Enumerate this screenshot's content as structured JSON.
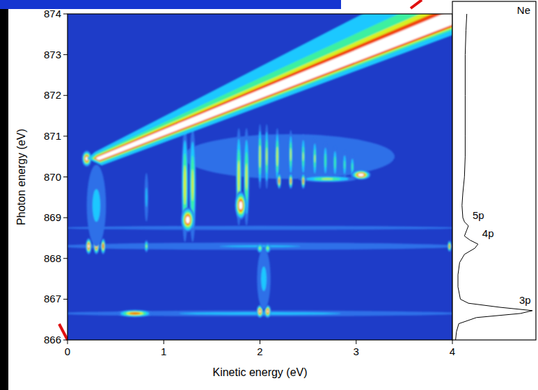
{
  "chart_data": {
    "type": "heatmap",
    "xlabel": "Kinetic energy (eV)",
    "ylabel": "Photon energy (eV)",
    "xlim": [
      0,
      4
    ],
    "ylim": [
      866,
      874
    ],
    "xticks": [
      0,
      1,
      2,
      3,
      4
    ],
    "yticks": [
      866,
      867,
      868,
      869,
      870,
      871,
      872,
      873,
      874
    ],
    "spots": [
      {
        "x": 2,
        "y": 866.65,
        "dx": 2.1,
        "dy": 0.07,
        "intensity": 0.35
      },
      {
        "x": 2,
        "y": 868.3,
        "dx": 2.1,
        "dy": 0.09,
        "intensity": 0.3
      },
      {
        "x": 2,
        "y": 868.75,
        "dx": 2.1,
        "dy": 0.05,
        "intensity": 0.22
      },
      {
        "x": 2.3,
        "y": 870.5,
        "dx": 1.1,
        "dy": 0.55,
        "intensity": 0.2
      },
      {
        "x": 0.7,
        "y": 866.65,
        "dx": 0.18,
        "dy": 0.09,
        "intensity": 0.85
      },
      {
        "x": 2.0,
        "y": 866.7,
        "dx": 0.035,
        "dy": 0.16,
        "intensity": 0.92
      },
      {
        "x": 2.08,
        "y": 866.7,
        "dx": 0.035,
        "dy": 0.16,
        "intensity": 0.9
      },
      {
        "x": 2.04,
        "y": 867.5,
        "dx": 0.07,
        "dy": 0.75,
        "intensity": 0.35
      },
      {
        "x": 2.0,
        "y": 868.25,
        "dx": 0.03,
        "dy": 0.12,
        "intensity": 0.6
      },
      {
        "x": 2.08,
        "y": 868.25,
        "dx": 0.03,
        "dy": 0.12,
        "intensity": 0.6
      },
      {
        "x": 0.22,
        "y": 868.3,
        "dx": 0.03,
        "dy": 0.2,
        "intensity": 0.95
      },
      {
        "x": 0.3,
        "y": 868.3,
        "dx": 0.03,
        "dy": 0.2,
        "intensity": 0.9
      },
      {
        "x": 0.37,
        "y": 868.3,
        "dx": 0.025,
        "dy": 0.2,
        "intensity": 0.85
      },
      {
        "x": 0.3,
        "y": 869.3,
        "dx": 0.1,
        "dy": 1.0,
        "intensity": 0.35
      },
      {
        "x": 0.82,
        "y": 868.3,
        "dx": 0.02,
        "dy": 0.15,
        "intensity": 0.6
      },
      {
        "x": 0.82,
        "y": 869.5,
        "dx": 0.02,
        "dy": 0.6,
        "intensity": 0.35
      },
      {
        "x": 3.97,
        "y": 868.3,
        "dx": 0.02,
        "dy": 0.14,
        "intensity": 0.8
      },
      {
        "x": 0.2,
        "y": 870.45,
        "dx": 0.05,
        "dy": 0.2,
        "intensity": 0.95
      },
      {
        "x": 1.22,
        "y": 869.8,
        "dx": 0.035,
        "dy": 1.4,
        "intensity": 0.7
      },
      {
        "x": 1.3,
        "y": 869.8,
        "dx": 0.035,
        "dy": 1.4,
        "intensity": 0.65
      },
      {
        "x": 1.25,
        "y": 868.95,
        "dx": 0.07,
        "dy": 0.3,
        "intensity": 1.0
      },
      {
        "x": 1.78,
        "y": 870.0,
        "dx": 0.03,
        "dy": 1.2,
        "intensity": 0.7
      },
      {
        "x": 1.86,
        "y": 870.0,
        "dx": 0.03,
        "dy": 1.2,
        "intensity": 0.65
      },
      {
        "x": 1.8,
        "y": 869.3,
        "dx": 0.06,
        "dy": 0.35,
        "intensity": 1.0
      },
      {
        "x": 2.0,
        "y": 870.5,
        "dx": 0.02,
        "dy": 0.8,
        "intensity": 0.7
      },
      {
        "x": 2.07,
        "y": 870.5,
        "dx": 0.02,
        "dy": 0.8,
        "intensity": 0.65
      },
      {
        "x": 2.18,
        "y": 870.5,
        "dx": 0.022,
        "dy": 0.7,
        "intensity": 0.7
      },
      {
        "x": 2.32,
        "y": 870.55,
        "dx": 0.02,
        "dy": 0.6,
        "intensity": 0.65
      },
      {
        "x": 2.45,
        "y": 870.5,
        "dx": 0.02,
        "dy": 0.55,
        "intensity": 0.6
      },
      {
        "x": 2.57,
        "y": 870.45,
        "dx": 0.02,
        "dy": 0.5,
        "intensity": 0.6
      },
      {
        "x": 2.68,
        "y": 870.4,
        "dx": 0.02,
        "dy": 0.45,
        "intensity": 0.55
      },
      {
        "x": 2.78,
        "y": 870.35,
        "dx": 0.02,
        "dy": 0.4,
        "intensity": 0.55
      },
      {
        "x": 2.88,
        "y": 870.3,
        "dx": 0.02,
        "dy": 0.35,
        "intensity": 0.5
      },
      {
        "x": 2.96,
        "y": 870.25,
        "dx": 0.02,
        "dy": 0.3,
        "intensity": 0.5
      },
      {
        "x": 3.05,
        "y": 870.05,
        "dx": 0.1,
        "dy": 0.12,
        "intensity": 1.0
      },
      {
        "x": 2.7,
        "y": 869.95,
        "dx": 0.3,
        "dy": 0.08,
        "intensity": 0.6
      },
      {
        "x": 2.2,
        "y": 869.9,
        "dx": 0.02,
        "dy": 0.2,
        "intensity": 0.85
      },
      {
        "x": 2.32,
        "y": 869.9,
        "dx": 0.02,
        "dy": 0.2,
        "intensity": 0.8
      },
      {
        "x": 2.45,
        "y": 869.9,
        "dx": 0.02,
        "dy": 0.2,
        "intensity": 0.8
      }
    ],
    "band": {
      "x": [
        0.32,
        4.0
      ],
      "y": [
        870.45,
        873.95
      ]
    },
    "spectrum": {
      "label": "Ne",
      "y": [
        866.0,
        866.2,
        866.4,
        866.55,
        866.65,
        866.72,
        866.8,
        866.9,
        867.0,
        867.3,
        867.6,
        867.9,
        868.1,
        868.25,
        868.35,
        868.45,
        868.55,
        868.7,
        868.8,
        868.9,
        869.0,
        869.3,
        869.6,
        870.0,
        870.5,
        871.0,
        872.0,
        873.0,
        873.6,
        874.0
      ],
      "values": [
        0.04,
        0.05,
        0.08,
        0.3,
        0.85,
        1.0,
        0.6,
        0.2,
        0.1,
        0.07,
        0.07,
        0.09,
        0.15,
        0.28,
        0.32,
        0.22,
        0.15,
        0.18,
        0.2,
        0.15,
        0.13,
        0.12,
        0.13,
        0.15,
        0.16,
        0.16,
        0.16,
        0.16,
        0.17,
        0.18
      ],
      "peaks": [
        {
          "label": "3p",
          "y": 866.72
        },
        {
          "label": "4p",
          "y": 868.35
        },
        {
          "label": "5p",
          "y": 868.8
        }
      ]
    }
  }
}
